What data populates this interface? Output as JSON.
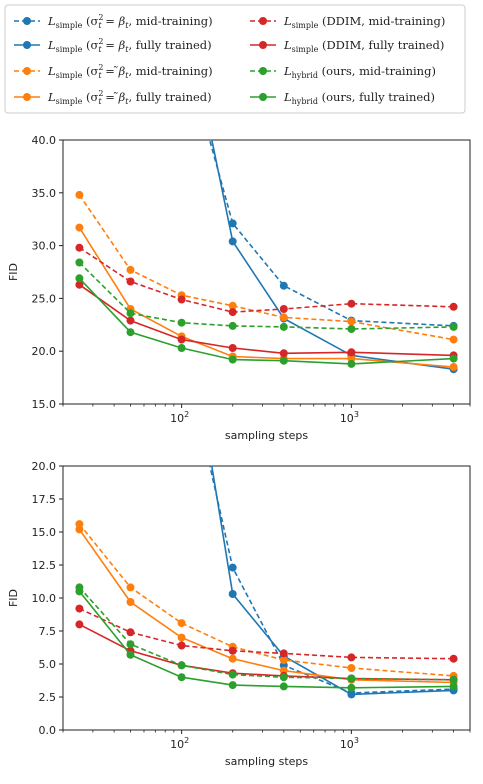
{
  "legend": [
    {
      "series": "simple_beta_mid",
      "main": "L",
      "sub": "simple",
      "desc": " (σ",
      "sigma_sub": "t",
      "sigma_sup": "2",
      "eq": " = ",
      "rhs": "β",
      "rhs_sub": "t",
      "rhs_bar": false,
      "tail": ", mid-training)"
    },
    {
      "series": "simple_beta_full",
      "main": "L",
      "sub": "simple",
      "desc": " (σ",
      "sigma_sub": "t",
      "sigma_sup": "2",
      "eq": " = ",
      "rhs": "β",
      "rhs_sub": "t",
      "rhs_bar": false,
      "tail": ", fully trained)"
    },
    {
      "series": "simple_betatilde_mid",
      "main": "L",
      "sub": "simple",
      "desc": " (σ",
      "sigma_sub": "t",
      "sigma_sup": "2",
      "eq": " = ",
      "rhs": "β",
      "rhs_sub": "t",
      "rhs_bar": true,
      "tail": ", mid-training)"
    },
    {
      "series": "simple_betatilde_full",
      "main": "L",
      "sub": "simple",
      "desc": " (σ",
      "sigma_sub": "t",
      "sigma_sup": "2",
      "eq": " = ",
      "rhs": "β",
      "rhs_sub": "t",
      "rhs_bar": true,
      "tail": ", fully trained)"
    },
    {
      "series": "ddim_mid",
      "main": "L",
      "sub": "simple",
      "desc": " (DDIM, mid-training)"
    },
    {
      "series": "ddim_full",
      "main": "L",
      "sub": "simple",
      "desc": " (DDIM, fully trained)"
    },
    {
      "series": "hybrid_mid",
      "main": "L",
      "sub": "hybrid",
      "desc": " (ours, mid-training)"
    },
    {
      "series": "hybrid_full",
      "main": "L",
      "sub": "hybrid",
      "desc": " (ours, fully trained)"
    }
  ],
  "styles": {
    "simple_beta_mid": {
      "color": "#1f77b4",
      "dash": true
    },
    "simple_beta_full": {
      "color": "#1f77b4",
      "dash": false
    },
    "simple_betatilde_mid": {
      "color": "#ff7f0e",
      "dash": true
    },
    "simple_betatilde_full": {
      "color": "#ff7f0e",
      "dash": false
    },
    "ddim_mid": {
      "color": "#d62728",
      "dash": true
    },
    "ddim_full": {
      "color": "#d62728",
      "dash": false
    },
    "hybrid_mid": {
      "color": "#2ca02c",
      "dash": true
    },
    "hybrid_full": {
      "color": "#2ca02c",
      "dash": false
    }
  },
  "chart_data": [
    {
      "type": "line",
      "xscale": "log",
      "xlabel": "sampling steps",
      "ylabel": "FID",
      "xlim": [
        20,
        5000
      ],
      "ylim": [
        15,
        40
      ],
      "yticks": [
        "15.0",
        "20.0",
        "25.0",
        "30.0",
        "35.0",
        "40.0"
      ],
      "xticks": [
        {
          "base": "10",
          "exp": "2",
          "value": 100
        },
        {
          "base": "10",
          "exp": "3",
          "value": 1000
        }
      ],
      "series": [
        {
          "id": "simple_beta_mid",
          "x": [
            200,
            400,
            1000,
            4000
          ],
          "y": [
            32.1,
            26.2,
            22.9,
            22.4
          ],
          "offscale": {
            "x": 120,
            "y": 45
          }
        },
        {
          "id": "simple_beta_full",
          "x": [
            200,
            400,
            1000,
            4000
          ],
          "y": [
            30.4,
            23.1,
            19.6,
            18.3
          ],
          "offscale": {
            "x": 130,
            "y": 45
          }
        },
        {
          "id": "simple_betatilde_mid",
          "x": [
            25,
            50,
            100,
            200,
            400,
            1000,
            4000
          ],
          "y": [
            34.8,
            27.7,
            25.3,
            24.3,
            23.2,
            22.8,
            21.1
          ]
        },
        {
          "id": "simple_betatilde_full",
          "x": [
            25,
            50,
            100,
            200,
            400,
            1000,
            4000
          ],
          "y": [
            31.7,
            24.0,
            21.4,
            19.5,
            19.3,
            19.3,
            18.5
          ]
        },
        {
          "id": "ddim_mid",
          "x": [
            25,
            50,
            100,
            200,
            400,
            1000,
            4000
          ],
          "y": [
            29.8,
            26.6,
            24.9,
            23.7,
            24.0,
            24.5,
            24.2
          ]
        },
        {
          "id": "ddim_full",
          "x": [
            25,
            50,
            100,
            200,
            400,
            1000,
            4000
          ],
          "y": [
            26.3,
            22.9,
            21.1,
            20.3,
            19.8,
            19.9,
            19.6
          ]
        },
        {
          "id": "hybrid_mid",
          "x": [
            25,
            50,
            100,
            200,
            400,
            1000,
            4000
          ],
          "y": [
            28.4,
            23.6,
            22.7,
            22.4,
            22.3,
            22.1,
            22.3
          ]
        },
        {
          "id": "hybrid_full",
          "x": [
            25,
            50,
            100,
            200,
            400,
            1000,
            4000
          ],
          "y": [
            26.9,
            21.8,
            20.3,
            19.2,
            19.1,
            18.8,
            19.3
          ]
        }
      ]
    },
    {
      "type": "line",
      "xscale": "log",
      "xlabel": "sampling steps",
      "ylabel": "FID",
      "xlim": [
        20,
        5000
      ],
      "ylim": [
        0,
        20
      ],
      "yticks": [
        "0.0",
        "2.5",
        "5.0",
        "7.5",
        "10.0",
        "12.5",
        "15.0",
        "17.5",
        "20.0"
      ],
      "xticks": [
        {
          "base": "10",
          "exp": "2",
          "value": 100
        },
        {
          "base": "10",
          "exp": "3",
          "value": 1000
        }
      ],
      "series": [
        {
          "id": "simple_beta_mid",
          "x": [
            200,
            400,
            1000,
            4000
          ],
          "y": [
            12.3,
            4.9,
            2.8,
            3.1
          ],
          "offscale": {
            "x": 120,
            "y": 25
          }
        },
        {
          "id": "simple_beta_full",
          "x": [
            200,
            400,
            1000,
            4000
          ],
          "y": [
            10.3,
            5.6,
            2.7,
            3.0
          ],
          "offscale": {
            "x": 130,
            "y": 25
          }
        },
        {
          "id": "simple_betatilde_mid",
          "x": [
            25,
            50,
            100,
            200,
            400,
            1000,
            4000
          ],
          "y": [
            15.6,
            10.8,
            8.1,
            6.3,
            5.3,
            4.7,
            4.1
          ]
        },
        {
          "id": "simple_betatilde_full",
          "x": [
            25,
            50,
            100,
            200,
            400,
            1000,
            4000
          ],
          "y": [
            15.2,
            9.7,
            7.0,
            5.4,
            4.5,
            3.8,
            3.6
          ]
        },
        {
          "id": "ddim_mid",
          "x": [
            25,
            50,
            100,
            200,
            400,
            1000,
            4000
          ],
          "y": [
            9.2,
            7.4,
            6.4,
            6.0,
            5.8,
            5.5,
            5.4
          ]
        },
        {
          "id": "ddim_full",
          "x": [
            25,
            50,
            100,
            200,
            400,
            1000,
            4000
          ],
          "y": [
            8.0,
            6.0,
            4.9,
            4.3,
            4.1,
            3.9,
            3.8
          ]
        },
        {
          "id": "hybrid_mid",
          "x": [
            25,
            50,
            100,
            200,
            400,
            1000,
            4000
          ],
          "y": [
            10.8,
            6.5,
            4.9,
            4.2,
            4.0,
            3.9,
            3.8
          ]
        },
        {
          "id": "hybrid_full",
          "x": [
            25,
            50,
            100,
            200,
            400,
            1000,
            4000
          ],
          "y": [
            10.5,
            5.7,
            4.0,
            3.4,
            3.3,
            3.2,
            3.3
          ]
        }
      ]
    }
  ]
}
